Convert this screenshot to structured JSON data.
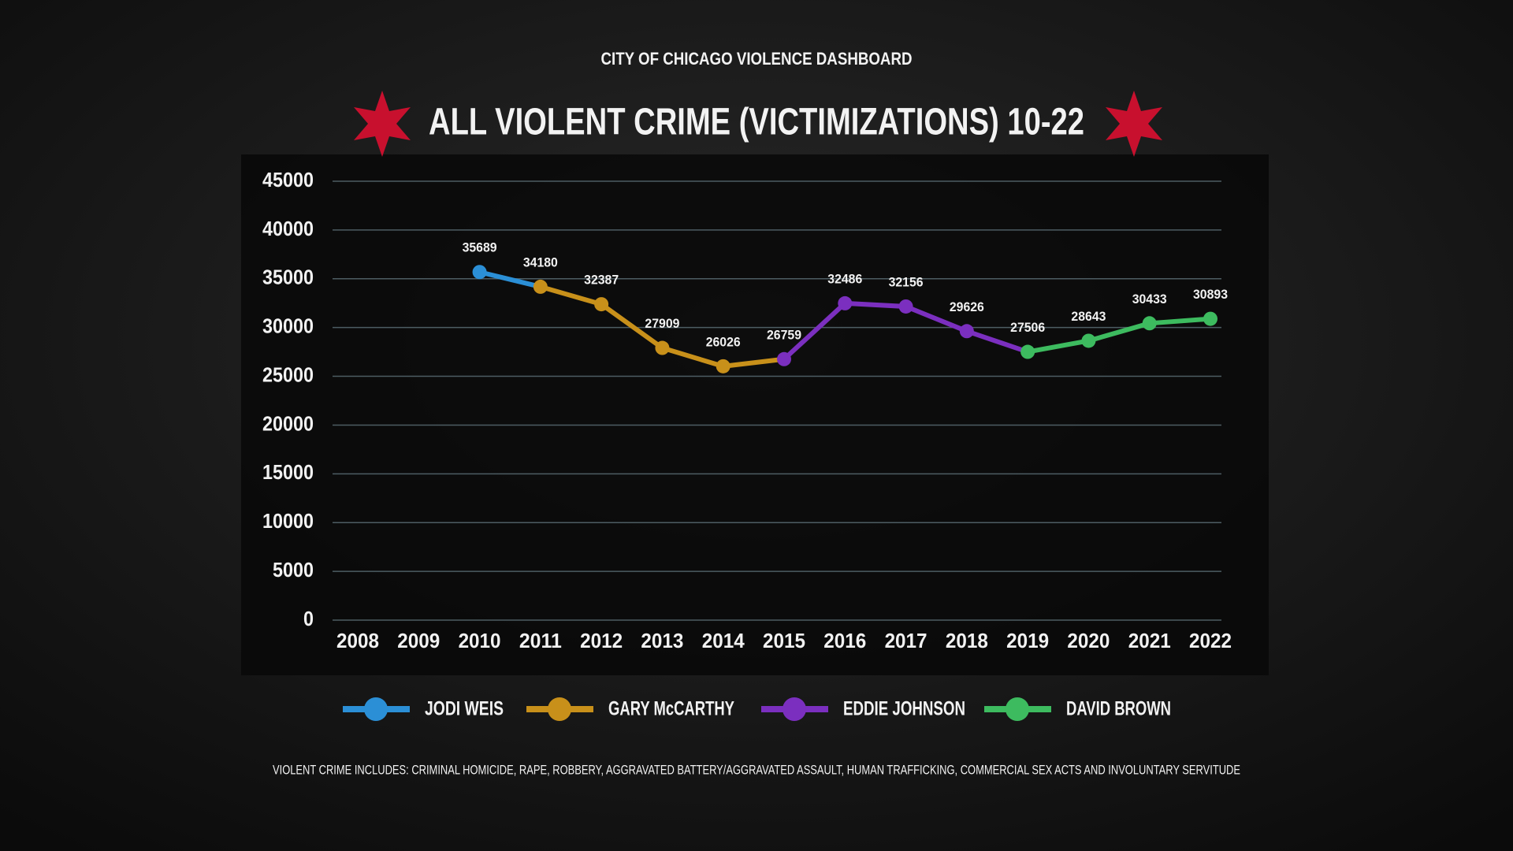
{
  "chart_data": {
    "type": "line",
    "subtitle": "CITY OF CHICAGO VIOLENCE DASHBOARD",
    "title": "ALL VIOLENT CRIME (VICTIMIZATIONS) 10-22",
    "categories": [
      "2008",
      "2009",
      "2010",
      "2011",
      "2012",
      "2013",
      "2014",
      "2015",
      "2016",
      "2017",
      "2018",
      "2019",
      "2020",
      "2021",
      "2022"
    ],
    "series": [
      {
        "name": "JODI WEIS",
        "color": "#2b8fd6",
        "values": [
          null,
          null,
          35689,
          34180,
          null,
          null,
          null,
          null,
          null,
          null,
          null,
          null,
          null,
          null,
          null
        ]
      },
      {
        "name": "GARY McCARTHY",
        "color": "#c8901a",
        "values": [
          null,
          null,
          null,
          34180,
          32387,
          27909,
          26026,
          26759,
          null,
          null,
          null,
          null,
          null,
          null,
          null
        ]
      },
      {
        "name": "EDDIE JOHNSON",
        "color": "#7b2fbf",
        "values": [
          null,
          null,
          null,
          null,
          null,
          null,
          null,
          26759,
          32486,
          32156,
          29626,
          27506,
          null,
          null,
          null
        ]
      },
      {
        "name": "DAVID BROWN",
        "color": "#3dbb5f",
        "values": [
          null,
          null,
          null,
          null,
          null,
          null,
          null,
          null,
          null,
          null,
          null,
          27506,
          28643,
          30433,
          30893
        ]
      }
    ],
    "ylim": [
      0,
      45000
    ],
    "yticks": [
      0,
      5000,
      10000,
      15000,
      20000,
      25000,
      30000,
      35000,
      40000,
      45000
    ],
    "grid": true,
    "legend": "bottom",
    "footnote": "VIOLENT CRIME INCLUDES: CRIMINAL HOMICIDE, RAPE, ROBBERY, AGGRAVATED BATTERY/AGGRAVATED ASSAULT, HUMAN TRAFFICKING, COMMERCIAL SEX ACTS AND INVOLUNTARY SERVITUDE"
  }
}
